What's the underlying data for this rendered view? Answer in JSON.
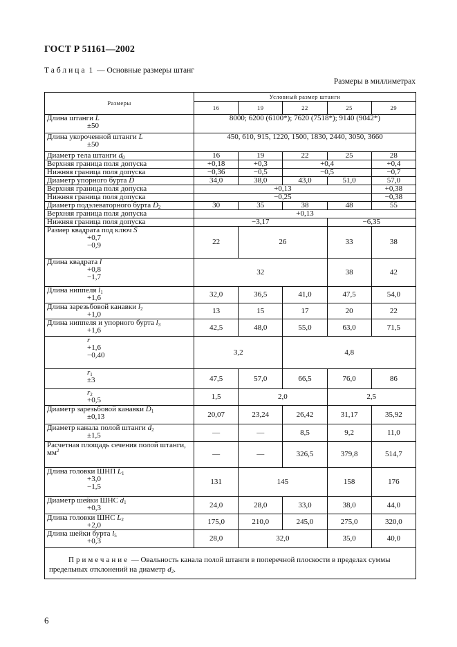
{
  "header": {
    "standard": "ГОСТ Р 51161—2002"
  },
  "caption": {
    "label": "Таблица",
    "number": "1",
    "title": " — Основные размеры штанг"
  },
  "units_note": "Размеры в миллиметрах",
  "table": {
    "col_header": "Размеры",
    "group_header": "Условный размер штанги",
    "sizes": [
      "16",
      "19",
      "22",
      "25",
      "29"
    ],
    "rows": [
      {
        "text": "Длина штанги ",
        "var": "L",
        "sub": "",
        "tol": [
          "±50"
        ],
        "cells": [
          {
            "v": "8000; 6200 (6100*); 7620 (7518*); 9140 (9042*)",
            "span": 5
          }
        ]
      },
      {
        "text": "Длина укороченной штанги ",
        "var": "L",
        "sub": "",
        "tol": [
          "±50"
        ],
        "cells": [
          {
            "v": "450, 610, 915, 1220, 1500, 1830, 2440, 3050, 3660",
            "span": 5
          }
        ]
      },
      {
        "text": "Диаметр тела штанги ",
        "var": "d",
        "sub": "0",
        "tol": [],
        "cells": [
          {
            "v": "16"
          },
          {
            "v": "19"
          },
          {
            "v": "22"
          },
          {
            "v": "25"
          },
          {
            "v": "28"
          }
        ]
      },
      {
        "text": "Верхняя граница поля допуска",
        "tol": [],
        "cells": [
          {
            "v": "+0,18"
          },
          {
            "v": "+0,3"
          },
          {
            "v": "+0,4",
            "span": 2
          },
          {
            "v": "+0,4"
          }
        ]
      },
      {
        "text": "Нижняя граница поля допуска",
        "tol": [],
        "cells": [
          {
            "v": "−0,36"
          },
          {
            "v": "−0,5"
          },
          {
            "v": "−0,5",
            "span": 2
          },
          {
            "v": "−0,7"
          }
        ]
      },
      {
        "text": "Диаметр упорного бурта ",
        "var": "D",
        "sub": "",
        "tol": [],
        "cells": [
          {
            "v": "34,0"
          },
          {
            "v": "38,0"
          },
          {
            "v": "43,0"
          },
          {
            "v": "51,0"
          },
          {
            "v": "57,0"
          }
        ]
      },
      {
        "text": "Верхняя граница поля допуска",
        "tol": [],
        "cells": [
          {
            "v": "+0,13",
            "span": 4
          },
          {
            "v": "+0,38"
          }
        ]
      },
      {
        "text": "Нижняя граница поля допуска",
        "tol": [],
        "cells": [
          {
            "v": "−0,25",
            "span": 4
          },
          {
            "v": "−0,38"
          }
        ]
      },
      {
        "text": "Диаметр подэлеваторного бурта ",
        "var": "D",
        "sub": "2",
        "tol": [],
        "cells": [
          {
            "v": "30"
          },
          {
            "v": "35"
          },
          {
            "v": "38"
          },
          {
            "v": "48"
          },
          {
            "v": "55"
          }
        ]
      },
      {
        "text": "Верхняя граница поля допуска",
        "tol": [],
        "cells": [
          {
            "v": "+0,13",
            "span": 5
          }
        ]
      },
      {
        "text": "Нижняя граница поля допуска",
        "tol": [],
        "cells": [
          {
            "v": "−3,17",
            "span": 3
          },
          {
            "v": "−6,35",
            "span": 2
          }
        ]
      },
      {
        "text": "Размер квадрата под ключ ",
        "var": "S",
        "sub": "",
        "tol": [
          "+0,7",
          "−0,9"
        ],
        "cells": [
          {
            "v": "22"
          },
          {
            "v": "26",
            "span": 2
          },
          {
            "v": "33"
          },
          {
            "v": "38"
          }
        ]
      },
      {
        "text": "Длина квадрата ",
        "var": "l",
        "sub": "",
        "tol": [
          "+0,8",
          "−1,7"
        ],
        "cells": [
          {
            "v": "32",
            "span": 3
          },
          {
            "v": "38"
          },
          {
            "v": "42"
          }
        ]
      },
      {
        "text": "Длина ниппеля ",
        "var": "l",
        "sub": "1",
        "tol": [
          "+1,6"
        ],
        "cells": [
          {
            "v": "32,0"
          },
          {
            "v": "36,5"
          },
          {
            "v": "41,0"
          },
          {
            "v": "47,5"
          },
          {
            "v": "54,0"
          }
        ]
      },
      {
        "text": "Длина зарезьбовой канавки ",
        "var": "l",
        "sub": "2",
        "tol": [
          "+1,0"
        ],
        "cells": [
          {
            "v": "13"
          },
          {
            "v": "15"
          },
          {
            "v": "17"
          },
          {
            "v": "20"
          },
          {
            "v": "22"
          }
        ]
      },
      {
        "text": "Длина ниппеля и упорного бурта ",
        "var": "l",
        "sub": "3",
        "tol": [
          "+1,6"
        ],
        "cells": [
          {
            "v": "42,5"
          },
          {
            "v": "48,0"
          },
          {
            "v": "55,0"
          },
          {
            "v": "63,0"
          },
          {
            "v": "71,5"
          }
        ]
      },
      {
        "text": "",
        "var": "r",
        "sub": "",
        "tol": [
          "+1,6",
          "−0,40"
        ],
        "indent": true,
        "cells": [
          {
            "v": "3,2",
            "span": 2
          },
          {
            "v": "4,8",
            "span": 3
          }
        ]
      },
      {
        "text": "",
        "var": "r",
        "sub": "1",
        "tol": [
          "±3"
        ],
        "indent": true,
        "cells": [
          {
            "v": "47,5"
          },
          {
            "v": "57,0"
          },
          {
            "v": "66,5"
          },
          {
            "v": "76,0"
          },
          {
            "v": "86"
          }
        ]
      },
      {
        "text": "",
        "var": "r",
        "sub": "2",
        "tol": [
          "+0,5"
        ],
        "indent": true,
        "cells": [
          {
            "v": "1,5"
          },
          {
            "v": "2,0",
            "span": 2
          },
          {
            "v": "2,5",
            "span": 2
          }
        ]
      },
      {
        "text": "Диаметр зарезьбовой канавки ",
        "var": "D",
        "sub": "1",
        "tol": [
          "±0,13"
        ],
        "cells": [
          {
            "v": "20,07"
          },
          {
            "v": "23,24"
          },
          {
            "v": "26,42"
          },
          {
            "v": "31,17"
          },
          {
            "v": "35,92"
          }
        ]
      },
      {
        "text": "Диаметр канала полой штанги ",
        "var": "d",
        "sub": "2",
        "tol": [
          "±1,5"
        ],
        "cells": [
          {
            "v": "—"
          },
          {
            "v": "—"
          },
          {
            "v": "8,5"
          },
          {
            "v": "9,2"
          },
          {
            "v": "11,0"
          }
        ]
      },
      {
        "text": "Расчетная площадь сечения полой штанги, мм",
        "sup": "2",
        "tol": [],
        "cells": [
          {
            "v": "—"
          },
          {
            "v": "—"
          },
          {
            "v": "326,5"
          },
          {
            "v": "379,8"
          },
          {
            "v": "514,7"
          }
        ]
      },
      {
        "text": "Длина головки ШНП ",
        "var": "L",
        "sub": "1",
        "tol": [
          "+3,0",
          "−1,5"
        ],
        "cells": [
          {
            "v": "131"
          },
          {
            "v": "145",
            "span": 2
          },
          {
            "v": "158"
          },
          {
            "v": "176"
          }
        ]
      },
      {
        "text": "Диаметр шейки ШНС ",
        "var": "d",
        "sub": "1",
        "tol": [
          "+0,3"
        ],
        "cells": [
          {
            "v": "24,0"
          },
          {
            "v": "28,0"
          },
          {
            "v": "33,0"
          },
          {
            "v": "38,0"
          },
          {
            "v": "44,0"
          }
        ]
      },
      {
        "text": "Длина головки ШНС ",
        "var": "L",
        "sub": "2",
        "tol": [
          "+2,0"
        ],
        "cells": [
          {
            "v": "175,0"
          },
          {
            "v": "210,0"
          },
          {
            "v": "245,0"
          },
          {
            "v": "275,0"
          },
          {
            "v": "320,0"
          }
        ]
      },
      {
        "text": "Длина шейки бурта ",
        "var": "l",
        "sub": "5",
        "tol": [
          "+0,3"
        ],
        "cells": [
          {
            "v": "28,0"
          },
          {
            "v": "32,0",
            "span": 2
          },
          {
            "v": "35,0"
          },
          {
            "v": "40,0"
          }
        ]
      }
    ],
    "note": {
      "label": "Примечание",
      "text": " — Овальность канала полой штанги в поперечной плоскости в пределах суммы предельных отклонений на диаметр ",
      "var": "d",
      "sub": "2",
      "end": "."
    }
  },
  "page_number": "6"
}
